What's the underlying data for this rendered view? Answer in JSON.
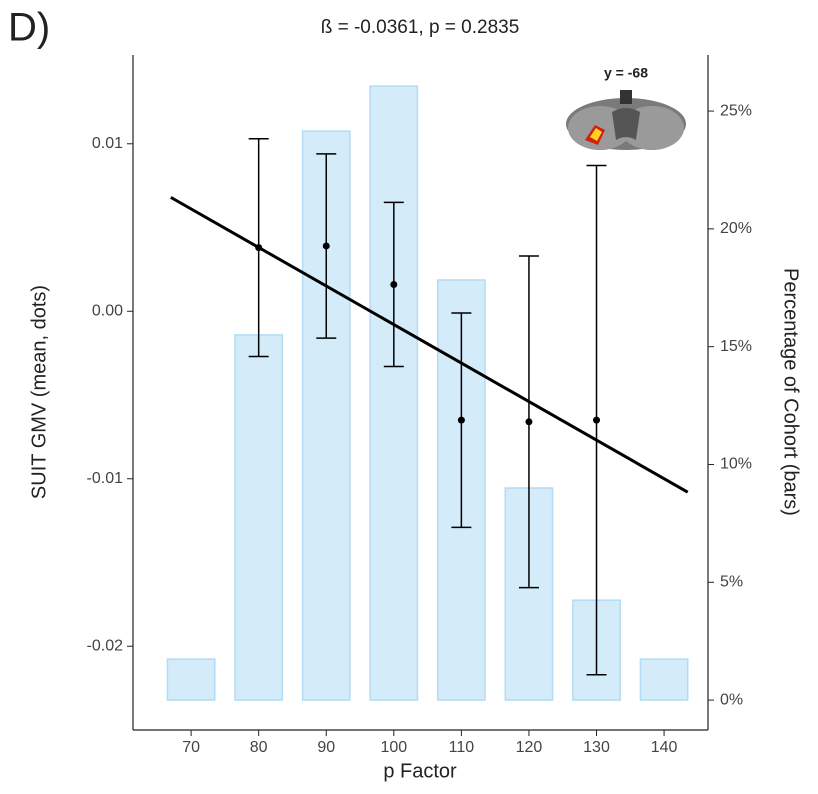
{
  "chart_data": {
    "type": "bar_errorbar",
    "panel_label": "D)",
    "title": "ß = -0.0361, p = 0.2835",
    "annotation": "y = -68",
    "x_label": "p Factor",
    "y_label": "SUIT GMV (mean, dots)",
    "y2_label": "Percentage of Cohort (bars)",
    "x": [
      70,
      80,
      90,
      100,
      110,
      120,
      130,
      140
    ],
    "xlim": [
      61.4,
      146.5
    ],
    "xticks": [
      70,
      80,
      90,
      100,
      110,
      120,
      130,
      140
    ],
    "ylim": [
      -0.025,
      0.0153
    ],
    "yticks": [
      {
        "value": -0.02,
        "label": "-0.02"
      },
      {
        "value": -0.01,
        "label": "-0.01"
      },
      {
        "value": 0,
        "label": "0.00"
      },
      {
        "value": 0.01,
        "label": "0.01"
      }
    ],
    "y2lim": [
      -1.27,
      27.38
    ],
    "y2ticks": [
      {
        "value": 0,
        "label": "0%"
      },
      {
        "value": 5,
        "label": "5%"
      },
      {
        "value": 10,
        "label": "10%"
      },
      {
        "value": 15,
        "label": "15%"
      },
      {
        "value": 20,
        "label": "20%"
      },
      {
        "value": 25,
        "label": "25%"
      }
    ],
    "series": [
      {
        "type": "bar",
        "axis": "y2",
        "color": "#d4ebfa",
        "values": [
          1.74,
          15.5,
          24.15,
          26.06,
          17.83,
          9.0,
          4.24,
          1.74
        ]
      },
      {
        "type": "errorbar",
        "axis": "y",
        "color": "#000000",
        "values": [
          null,
          0.0038,
          0.0039,
          0.0016,
          -0.0065,
          -0.0066,
          -0.0065,
          null
        ],
        "errors": [
          null,
          0.0065,
          0.0055,
          0.0049,
          0.0064,
          0.0099,
          0.0152,
          null
        ]
      },
      {
        "type": "line",
        "axis": "y",
        "color": "#000000",
        "x": [
          67,
          143.5
        ],
        "values": [
          0.0068,
          -0.0108
        ]
      }
    ]
  }
}
